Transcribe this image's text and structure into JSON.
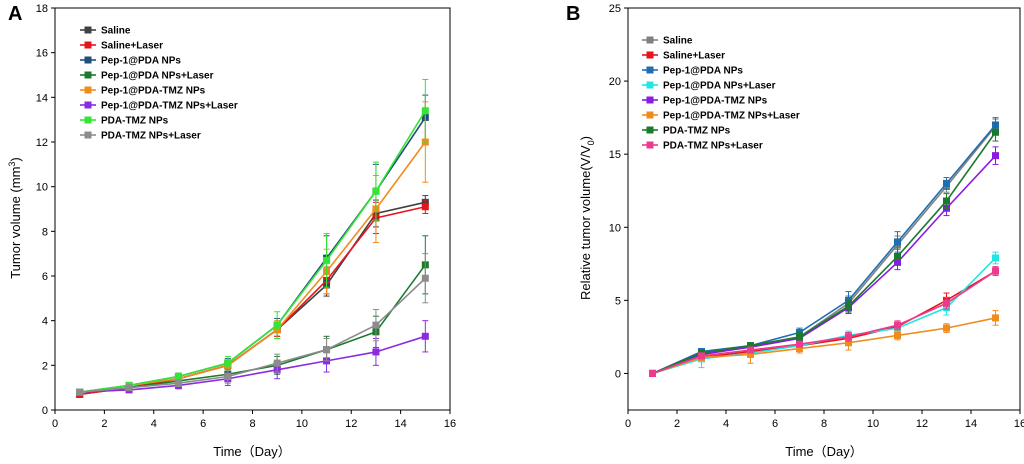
{
  "chart_data": [
    {
      "type": "line",
      "panel_label": "A",
      "xlabel": "Time（Day）",
      "ylabel": "Tumor volume (mm",
      "ylabel_sup": "3",
      "ylabel_end": ")",
      "xlim": [
        0,
        16
      ],
      "ylim": [
        0,
        18
      ],
      "xticks": [
        0,
        2,
        4,
        6,
        8,
        10,
        12,
        14,
        16
      ],
      "yticks": [
        0,
        2,
        4,
        6,
        8,
        10,
        12,
        14,
        16,
        18
      ],
      "x": [
        1,
        3,
        5,
        7,
        9,
        11,
        13,
        15
      ],
      "legend_position": "top-left",
      "series": [
        {
          "name": "Saline",
          "color": "#404040",
          "values": [
            0.7,
            1.0,
            1.4,
            2.0,
            3.6,
            5.6,
            8.8,
            9.3
          ],
          "errors": [
            0.1,
            0.1,
            0.15,
            0.2,
            0.3,
            0.5,
            0.6,
            0.3
          ]
        },
        {
          "name": "Saline+Laser",
          "color": "#e8141c",
          "values": [
            0.7,
            1.0,
            1.4,
            2.0,
            3.6,
            5.8,
            8.6,
            9.1
          ],
          "errors": [
            0.1,
            0.1,
            0.15,
            0.2,
            0.3,
            0.6,
            0.7,
            0.3
          ]
        },
        {
          "name": "Pep-1@PDA NPs",
          "color": "#1f4e79",
          "values": [
            0.8,
            1.1,
            1.5,
            2.1,
            3.8,
            6.8,
            9.8,
            13.1
          ],
          "errors": [
            0.1,
            0.1,
            0.15,
            0.2,
            0.3,
            1.0,
            1.2,
            1.0
          ]
        },
        {
          "name": "Pep-1@PDA NPs+Laser",
          "color": "#1b7a2c",
          "values": [
            0.8,
            1.0,
            1.3,
            1.6,
            2.0,
            2.7,
            3.5,
            6.5
          ],
          "errors": [
            0.1,
            0.1,
            0.15,
            0.2,
            0.4,
            0.6,
            0.7,
            1.3
          ]
        },
        {
          "name": "Pep-1@PDA-TMZ NPs",
          "color": "#f08c1e",
          "values": [
            0.8,
            1.1,
            1.4,
            2.0,
            3.6,
            6.2,
            9.0,
            12.0
          ],
          "errors": [
            0.1,
            0.1,
            0.15,
            0.2,
            0.4,
            1.0,
            1.5,
            1.8
          ]
        },
        {
          "name": "Pep-1@PDA-TMZ NPs+Laser",
          "color": "#8a2be2",
          "values": [
            0.8,
            0.9,
            1.1,
            1.4,
            1.8,
            2.2,
            2.6,
            3.3
          ],
          "errors": [
            0.1,
            0.1,
            0.15,
            0.3,
            0.4,
            0.5,
            0.6,
            0.7
          ]
        },
        {
          "name": "PDA-TMZ NPs",
          "color": "#33e633",
          "values": [
            0.8,
            1.1,
            1.5,
            2.1,
            3.8,
            6.7,
            9.8,
            13.4
          ],
          "errors": [
            0.1,
            0.1,
            0.15,
            0.3,
            0.6,
            1.2,
            1.3,
            1.4
          ]
        },
        {
          "name": "PDA-TMZ NPs+Laser",
          "color": "#8c8c8c",
          "values": [
            0.8,
            1.0,
            1.2,
            1.5,
            2.1,
            2.7,
            3.8,
            5.9
          ],
          "errors": [
            0.1,
            0.1,
            0.15,
            0.3,
            0.4,
            0.5,
            0.7,
            1.1
          ]
        }
      ]
    },
    {
      "type": "line",
      "panel_label": "B",
      "xlabel": "Time（Day）",
      "ylabel": "Relative tumor volume(V/V",
      "ylabel_sub": "0",
      "ylabel_end": ")",
      "xlim": [
        0,
        16
      ],
      "ylim": [
        -2.5,
        25
      ],
      "xticks": [
        0,
        2,
        4,
        6,
        8,
        10,
        12,
        14,
        16
      ],
      "yticks": [
        0,
        5,
        10,
        15,
        20,
        25
      ],
      "x": [
        1,
        3,
        5,
        7,
        9,
        11,
        13,
        15
      ],
      "legend_position": "top-left",
      "series": [
        {
          "name": "Saline",
          "color": "#808080",
          "values": [
            0,
            1.4,
            1.8,
            2.5,
            4.8,
            8.8,
            12.8,
            16.9
          ],
          "errors": [
            0,
            0.2,
            0.2,
            0.3,
            0.5,
            0.6,
            0.4,
            0.5
          ]
        },
        {
          "name": "Saline+Laser",
          "color": "#e8141c",
          "values": [
            0,
            1.1,
            1.5,
            1.9,
            2.4,
            3.2,
            5.0,
            7.0
          ],
          "errors": [
            0,
            0.2,
            0.2,
            0.2,
            0.3,
            0.3,
            0.5,
            0.3
          ]
        },
        {
          "name": "Pep-1@PDA NPs",
          "color": "#1f6fb0",
          "values": [
            0,
            1.5,
            1.9,
            2.8,
            5.0,
            9.0,
            13.0,
            17.0
          ],
          "errors": [
            0,
            0.2,
            0.2,
            0.3,
            0.6,
            0.7,
            0.4,
            0.5
          ]
        },
        {
          "name": "Pep-1@PDA NPs+Laser",
          "color": "#22e5e5",
          "values": [
            0,
            1.0,
            1.4,
            1.9,
            2.6,
            3.1,
            4.5,
            7.9
          ],
          "errors": [
            0,
            0.6,
            0.3,
            0.3,
            0.3,
            0.3,
            0.5,
            0.4
          ]
        },
        {
          "name": "Pep-1@PDA-TMZ NPs",
          "color": "#8a1be2",
          "values": [
            0,
            1.3,
            1.8,
            2.4,
            4.5,
            7.6,
            11.3,
            14.9
          ],
          "errors": [
            0,
            0.2,
            0.2,
            0.3,
            0.4,
            0.5,
            0.5,
            0.6
          ]
        },
        {
          "name": "Pep-1@PDA-TMZ NPs+Laser",
          "color": "#f08c1e",
          "values": [
            0,
            1.1,
            1.3,
            1.7,
            2.1,
            2.6,
            3.1,
            3.8
          ],
          "errors": [
            0,
            0.2,
            0.6,
            0.3,
            0.5,
            0.3,
            0.3,
            0.5
          ]
        },
        {
          "name": "PDA-TMZ NPs",
          "color": "#1b7a2c",
          "values": [
            0,
            1.4,
            1.9,
            2.5,
            4.6,
            8.0,
            11.8,
            16.5
          ],
          "errors": [
            0,
            0.2,
            0.2,
            0.3,
            0.4,
            0.5,
            0.5,
            0.6
          ]
        },
        {
          "name": "PDA-TMZ NPs+Laser",
          "color": "#ee3a8c",
          "values": [
            0,
            1.2,
            1.6,
            2.0,
            2.5,
            3.3,
            4.8,
            7.0
          ],
          "errors": [
            0,
            0.2,
            0.2,
            0.2,
            0.3,
            0.3,
            0.4,
            0.3
          ]
        }
      ]
    }
  ]
}
